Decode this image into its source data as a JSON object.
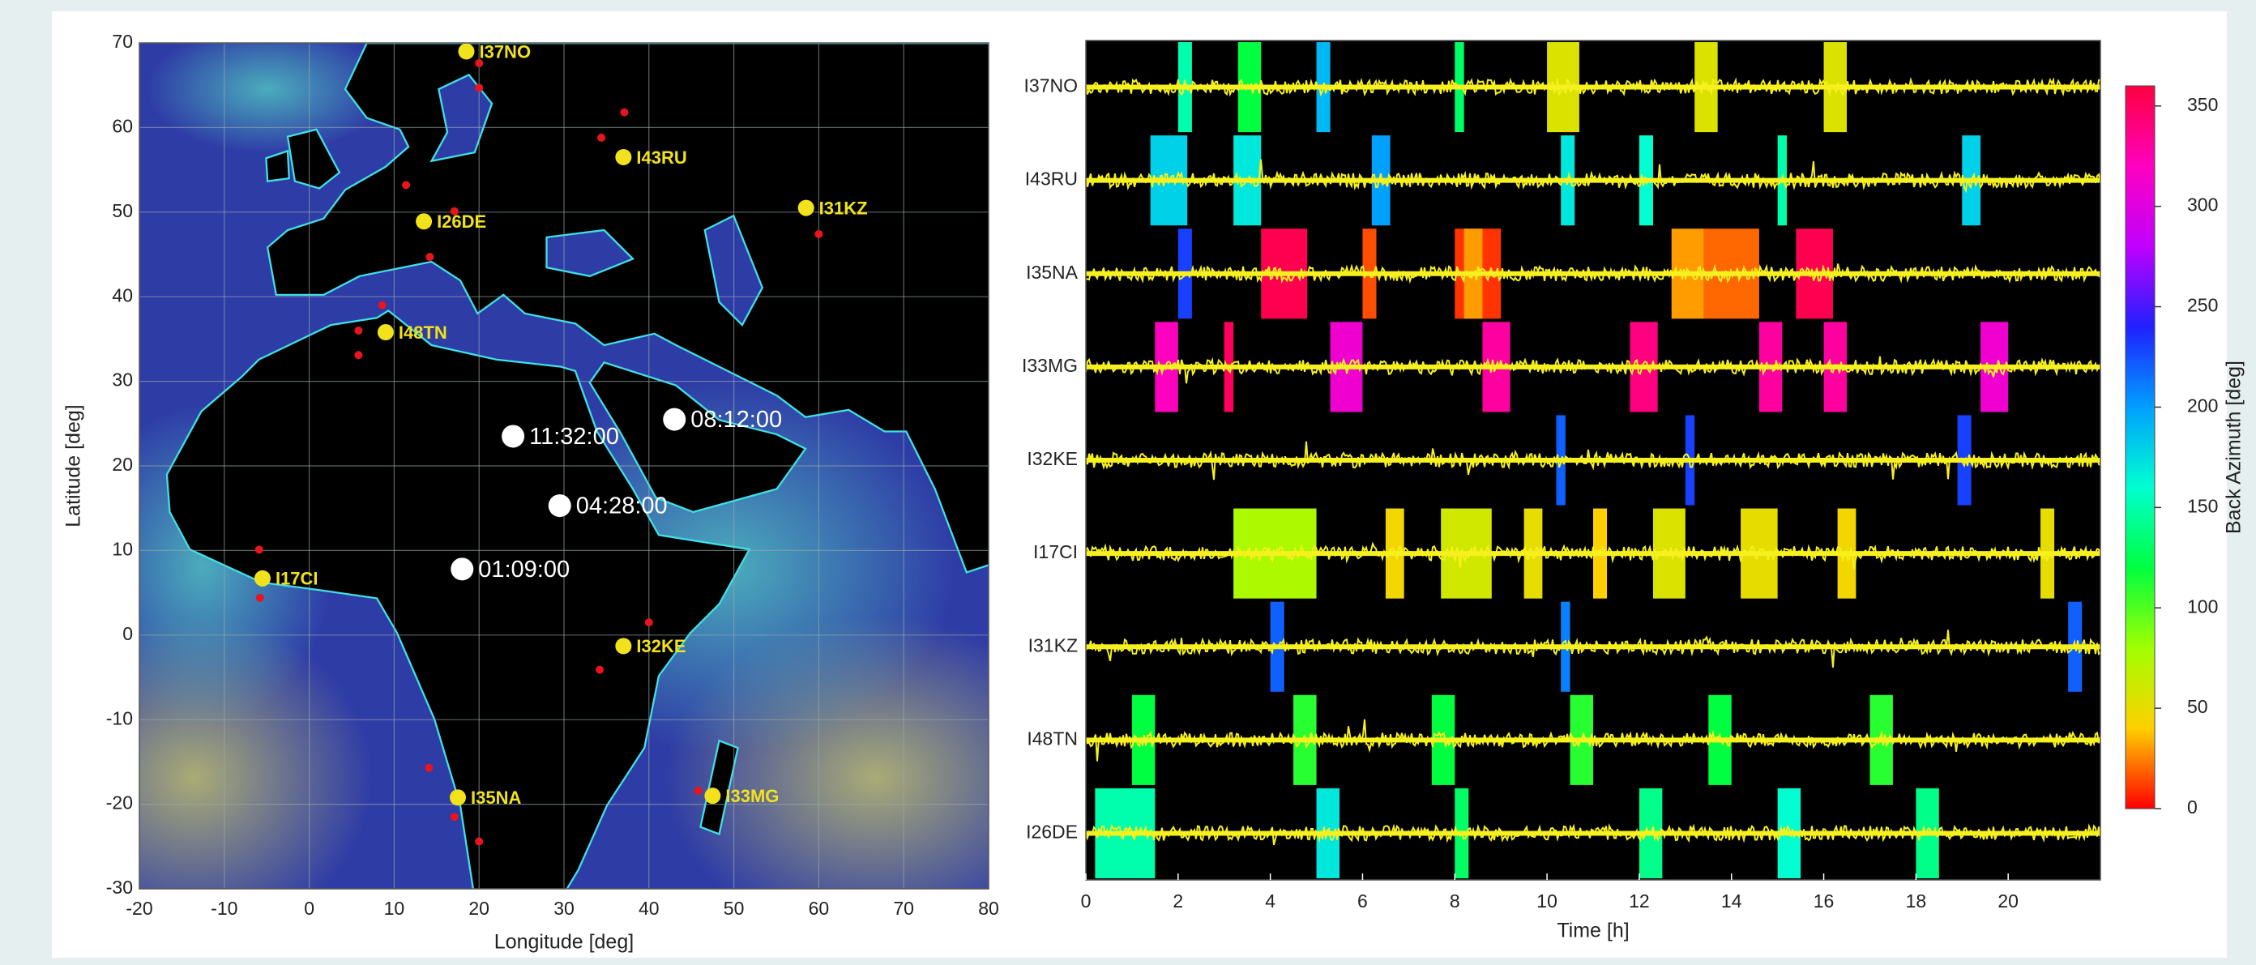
{
  "chart_data": [
    {
      "type": "map",
      "xlabel": "Longitude [deg]",
      "ylabel": "Latitude [deg]",
      "xlim": [
        -20,
        80
      ],
      "ylim": [
        -30,
        70
      ],
      "xticks": [
        -20,
        -10,
        0,
        10,
        20,
        30,
        40,
        50,
        60,
        70,
        80
      ],
      "yticks": [
        -30,
        -20,
        -10,
        0,
        10,
        20,
        30,
        40,
        50,
        60,
        70
      ],
      "grid": true,
      "series": [
        {
          "color": "#e8141e",
          "x": [
            20,
            20,
            37.1,
            34.4,
            11.4,
            17.1,
            14.2,
            8.6,
            5.8,
            5.8,
            -5.9,
            -5.8,
            40,
            34.2,
            14.1,
            17.1,
            20,
            45.8,
            60
          ],
          "values": [
            67.6,
            64.7,
            61.8,
            58.8,
            53.2,
            50.1,
            44.7,
            39,
            36,
            33.1,
            10.1,
            4.4,
            1.5,
            -4.1,
            -15.7,
            -21.5,
            -24.4,
            -18.4,
            47.4
          ]
        },
        {
          "color": "#f2e21c",
          "x": [
            18.5,
            37,
            58.5,
            13.5,
            9,
            -5.5,
            37,
            17.5,
            47.5
          ],
          "values": [
            69,
            56.5,
            50.5,
            48.9,
            35.8,
            6.7,
            -1.3,
            -19.2,
            -19
          ],
          "labels": [
            "I37NO",
            "I43RU",
            "I31KZ",
            "I26DE",
            "I48TN",
            "I17CI",
            "I32KE",
            "I35NA",
            "I33MG"
          ]
        },
        {
          "color": "#ffffff",
          "x": [
            24,
            43,
            29.5,
            18
          ],
          "values": [
            23.5,
            25.5,
            15.3,
            7.8
          ],
          "labels": [
            "11:32:00",
            "08:12:00",
            "04:28:00",
            "01:09:00"
          ]
        }
      ]
    },
    {
      "type": "traces",
      "xlabel": "Time [h]",
      "xlim": [
        0,
        22
      ],
      "xticks": [
        0,
        2,
        4,
        6,
        8,
        10,
        12,
        14,
        16,
        18,
        20
      ],
      "categories": [
        "I37NO",
        "I43RU",
        "I35NA",
        "I33MG",
        "I32KE",
        "I17CI",
        "I31KZ",
        "I48TN",
        "I26DE"
      ],
      "trace_color": "#f5f01e",
      "segments": [
        [
          [
            2,
            2.3,
            150
          ],
          [
            3.3,
            3.8,
            120
          ],
          [
            5,
            5.3,
            190
          ],
          [
            8,
            8.2,
            130
          ],
          [
            10,
            10.7,
            55
          ],
          [
            13.2,
            13.7,
            55
          ],
          [
            16,
            16.5,
            55
          ]
        ],
        [
          [
            1.4,
            2.2,
            180
          ],
          [
            3.2,
            3.8,
            170
          ],
          [
            6.2,
            6.6,
            200
          ],
          [
            10.3,
            10.6,
            170
          ],
          [
            12,
            12.3,
            160
          ],
          [
            15,
            15.2,
            150
          ],
          [
            19,
            19.4,
            180
          ]
        ],
        [
          [
            2,
            2.3,
            230
          ],
          [
            3.8,
            4.8,
            355
          ],
          [
            6,
            6.3,
            15
          ],
          [
            8,
            9,
            10
          ],
          [
            8.2,
            8.6,
            30
          ],
          [
            12.7,
            13.4,
            30
          ],
          [
            13.4,
            14.6,
            20
          ],
          [
            15.4,
            16.2,
            355
          ]
        ],
        [
          [
            1.5,
            2,
            320
          ],
          [
            3,
            3.2,
            350
          ],
          [
            5.3,
            6,
            310
          ],
          [
            8.6,
            9.2,
            330
          ],
          [
            11.8,
            12.4,
            340
          ],
          [
            14.6,
            15.1,
            330
          ],
          [
            16,
            16.5,
            330
          ],
          [
            19.4,
            20,
            310
          ]
        ],
        [
          [
            10.2,
            10.4,
            220
          ],
          [
            13,
            13.2,
            230
          ],
          [
            18.9,
            19.2,
            230
          ]
        ],
        [
          [
            3.2,
            5,
            75
          ],
          [
            6.5,
            6.9,
            45
          ],
          [
            7.7,
            8.8,
            60
          ],
          [
            9.5,
            9.9,
            50
          ],
          [
            11,
            11.3,
            40
          ],
          [
            12.3,
            13,
            55
          ],
          [
            14.2,
            15,
            50
          ],
          [
            16.3,
            16.7,
            45
          ],
          [
            20.7,
            21,
            50
          ]
        ],
        [
          [
            4,
            4.3,
            220
          ],
          [
            10.3,
            10.5,
            210
          ],
          [
            21.3,
            21.6,
            220
          ]
        ],
        [
          [
            1,
            1.5,
            120
          ],
          [
            4.5,
            5,
            110
          ],
          [
            7.5,
            8,
            120
          ],
          [
            10.5,
            11,
            110
          ],
          [
            13.5,
            14,
            120
          ],
          [
            17,
            17.5,
            110
          ]
        ],
        [
          [
            0.2,
            1.5,
            150
          ],
          [
            5,
            5.5,
            170
          ],
          [
            8,
            8.3,
            130
          ],
          [
            12,
            12.5,
            140
          ],
          [
            15,
            15.5,
            160
          ],
          [
            18,
            18.5,
            140
          ]
        ]
      ],
      "colorbar": {
        "label": "Back Azimuth [deg]",
        "clim": [
          0,
          360
        ],
        "ticks": [
          0,
          50,
          100,
          150,
          200,
          250,
          300,
          350
        ],
        "colors": [
          "#ff0000",
          "#ffd000",
          "#a0ff00",
          "#00ff40",
          "#00ffd0",
          "#00a0ff",
          "#2020ff",
          "#c000ff",
          "#ff00c0",
          "#ff0040"
        ]
      }
    }
  ]
}
